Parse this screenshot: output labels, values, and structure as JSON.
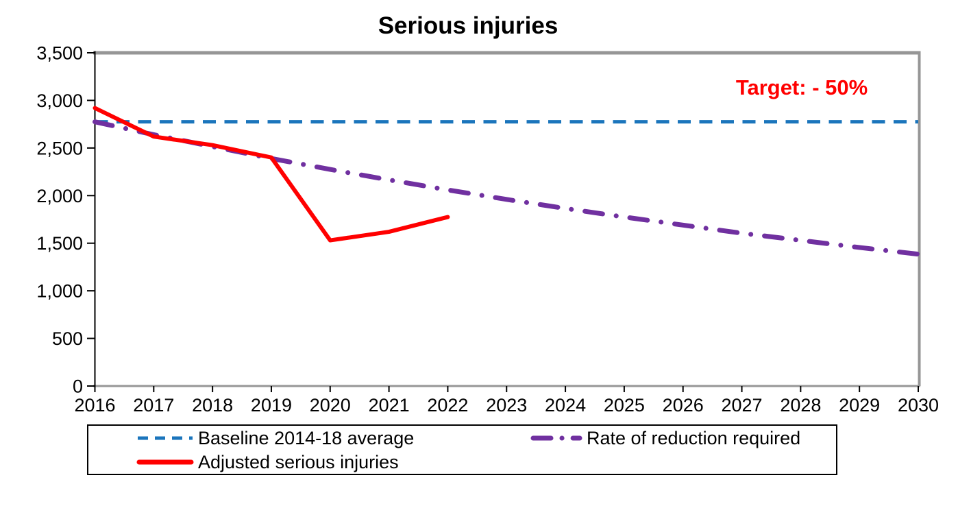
{
  "title": "Serious injuries",
  "annotation": {
    "text": "Target: - 50%",
    "color": "#ff0000"
  },
  "legend": [
    {
      "id": "baseline",
      "label": "Baseline 2014-18 average",
      "style": "dashed",
      "color": "#1b75bc"
    },
    {
      "id": "rate",
      "label": "Rate of reduction required",
      "style": "dashdot",
      "color": "#7030a0"
    },
    {
      "id": "adjusted",
      "label": "Adjusted serious injuries",
      "style": "solid",
      "color": "#ff0000"
    }
  ],
  "chart_data": {
    "type": "line",
    "title": "Serious injuries",
    "xlabel": "",
    "ylabel": "",
    "xlim": [
      2016,
      2030
    ],
    "ylim": [
      0,
      3500
    ],
    "grid": false,
    "legend_position": "bottom",
    "frame_color": "#969696",
    "x": [
      2016,
      2017,
      2018,
      2019,
      2020,
      2021,
      2022,
      2023,
      2024,
      2025,
      2026,
      2027,
      2028,
      2029,
      2030
    ],
    "xticks": [
      2016,
      2017,
      2018,
      2019,
      2020,
      2021,
      2022,
      2023,
      2024,
      2025,
      2026,
      2027,
      2028,
      2029,
      2030
    ],
    "yticks": [
      {
        "value": 3500,
        "label": "3,500"
      },
      {
        "value": 3000,
        "label": "3,000"
      },
      {
        "value": 2500,
        "label": "2,500"
      },
      {
        "value": 2000,
        "label": "2,000"
      },
      {
        "value": 1500,
        "label": "1,500"
      },
      {
        "value": 1000,
        "label": "1,000"
      },
      {
        "value": 500,
        "label": "500"
      },
      {
        "value": 0,
        "label": "0"
      }
    ],
    "series": [
      {
        "id": "baseline",
        "name": "Baseline 2014-18 average",
        "color": "#1b75bc",
        "width": 5,
        "dash": "19 12.5",
        "linecap": "butt",
        "values": [
          2775,
          2775,
          2775,
          2775,
          2775,
          2775,
          2775,
          2775,
          2775,
          2775,
          2775,
          2775,
          2775,
          2775,
          2775
        ]
      },
      {
        "id": "rate",
        "name": "Rate of reduction required",
        "color": "#7030a0",
        "width": 7,
        "dash": "26 20 0.1 20",
        "linecap": "round",
        "values": [
          2775,
          2640,
          2515,
          2390,
          2275,
          2165,
          2060,
          1960,
          1865,
          1775,
          1690,
          1605,
          1530,
          1455,
          1385
        ]
      },
      {
        "id": "adjusted",
        "name": "Adjusted serious injuries",
        "color": "#ff0000",
        "width": 6,
        "dash": "",
        "linecap": "round",
        "values": [
          2920,
          2620,
          2530,
          2400,
          1530,
          1620,
          1775
        ]
      }
    ]
  }
}
